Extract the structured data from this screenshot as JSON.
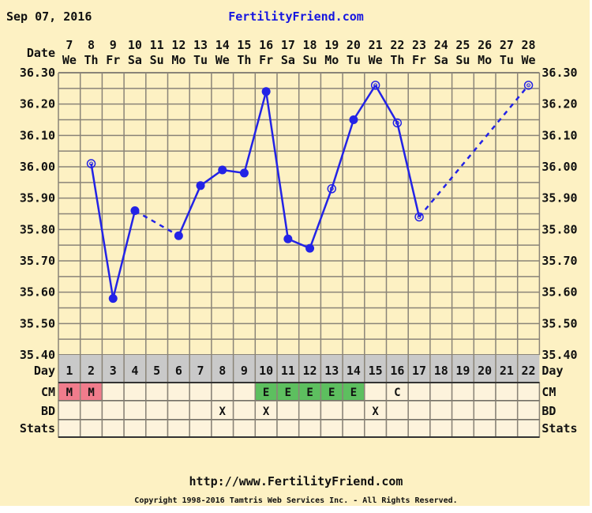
{
  "header": {
    "date": "Sep 07, 2016",
    "site": "FertilityFriend.com"
  },
  "footer": {
    "url": "http://www.FertilityFriend.com",
    "copyright": "Copyright 1998-2016 Tamtris Web Services Inc. - All Rights Reserved."
  },
  "labels": {
    "date": "Date",
    "day": "Day",
    "cm": "CM",
    "bd": "BD",
    "stats": "Stats"
  },
  "colors": {
    "background": "#fdf1c3",
    "line": "#2323e6",
    "grid": "#8a8478",
    "day_band": "#c9c9c9",
    "cell": "#fdf3dc",
    "cm_m": "#f07c8c",
    "cm_e": "#5dbf5f",
    "title": "#1616e0"
  },
  "chart_data": {
    "type": "line",
    "title": "FertilityFriend.com",
    "dates": [
      "7",
      "8",
      "9",
      "10",
      "11",
      "12",
      "13",
      "14",
      "15",
      "16",
      "17",
      "18",
      "19",
      "20",
      "21",
      "22",
      "23",
      "24",
      "25",
      "26",
      "27",
      "28"
    ],
    "weekdays": [
      "We",
      "Th",
      "Fr",
      "Sa",
      "Su",
      "Mo",
      "Tu",
      "We",
      "Th",
      "Fr",
      "Sa",
      "Su",
      "Mo",
      "Tu",
      "We",
      "Th",
      "Fr",
      "Sa",
      "Su",
      "Mo",
      "Tu",
      "We"
    ],
    "cycle_days": [
      "1",
      "2",
      "3",
      "4",
      "5",
      "6",
      "7",
      "8",
      "9",
      "10",
      "11",
      "12",
      "13",
      "14",
      "15",
      "16",
      "17",
      "18",
      "19",
      "20",
      "21",
      "22"
    ],
    "temps": [
      null,
      36.01,
      35.58,
      35.86,
      null,
      35.78,
      35.94,
      35.99,
      35.98,
      36.24,
      35.77,
      35.74,
      35.93,
      36.15,
      36.26,
      36.14,
      35.84,
      null,
      null,
      null,
      null,
      36.26
    ],
    "open_marker": [
      false,
      true,
      false,
      false,
      false,
      false,
      false,
      false,
      false,
      false,
      false,
      false,
      true,
      false,
      true,
      true,
      true,
      false,
      false,
      false,
      false,
      true
    ],
    "ylim": [
      35.4,
      36.3
    ],
    "yticks": [
      "36.30",
      "36.20",
      "36.10",
      "36.00",
      "35.90",
      "35.80",
      "35.70",
      "35.60",
      "35.50",
      "35.40"
    ],
    "grid": true,
    "cm": [
      "M",
      "M",
      "",
      "",
      "",
      "",
      "",
      "",
      "",
      "E",
      "E",
      "E",
      "E",
      "E",
      "",
      "C",
      "",
      "",
      "",
      "",
      "",
      ""
    ],
    "bd": [
      "",
      "",
      "",
      "",
      "",
      "",
      "",
      "X",
      "",
      "X",
      "",
      "",
      "",
      "",
      "X",
      "",
      "",
      "",
      "",
      "",
      "",
      ""
    ],
    "stats": [
      "",
      "",
      "",
      "",
      "",
      "",
      "",
      "",
      "",
      "",
      "",
      "",
      "",
      "",
      "",
      "",
      "",
      "",
      "",
      "",
      "",
      ""
    ]
  }
}
